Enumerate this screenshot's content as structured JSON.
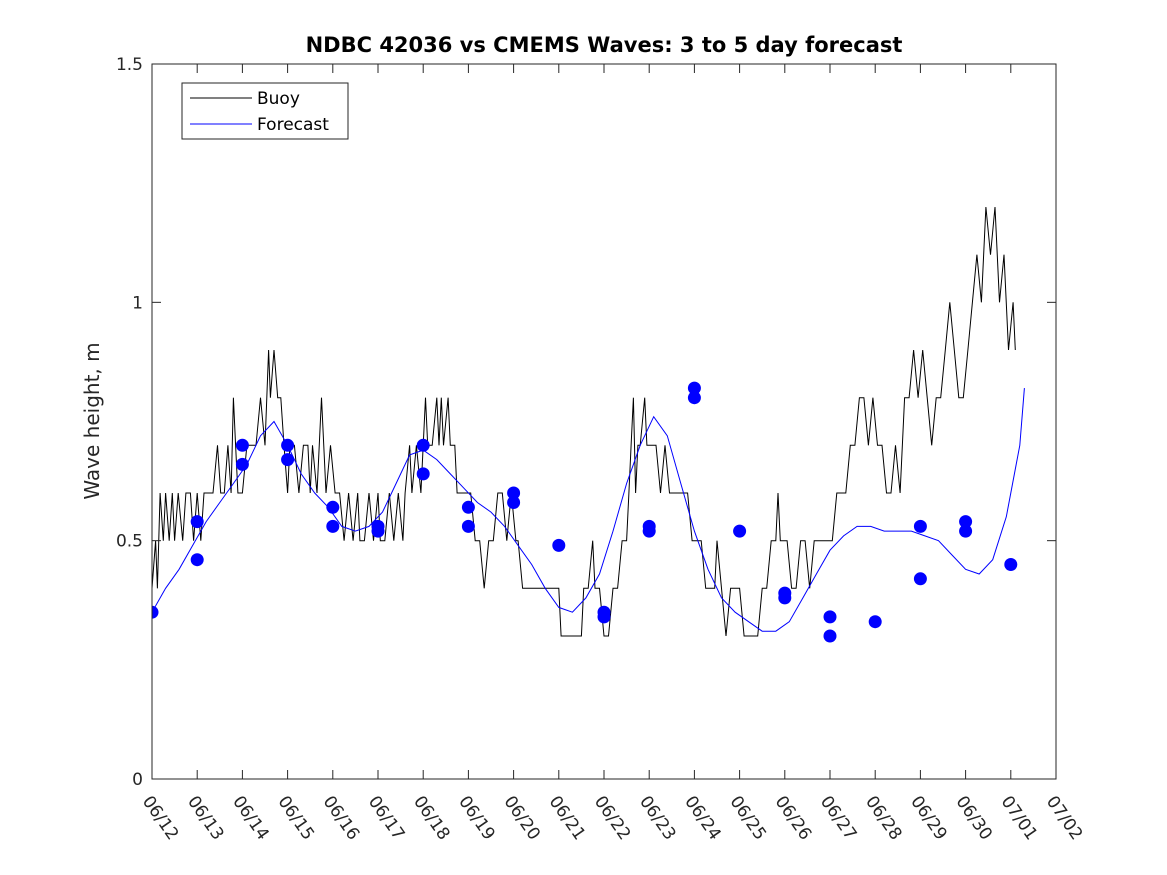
{
  "chart_data": {
    "type": "line",
    "title": "NDBC 42036 vs CMEMS Waves: 3 to 5 day forecast",
    "ylabel": "Wave height, m",
    "xlabel": "",
    "ylim": [
      0,
      1.5
    ],
    "xlim": [
      "06/12",
      "07/02"
    ],
    "x_ticks": [
      "06/12",
      "06/13",
      "06/14",
      "06/15",
      "06/16",
      "06/17",
      "06/18",
      "06/19",
      "06/20",
      "06/21",
      "06/22",
      "06/23",
      "06/24",
      "06/25",
      "06/26",
      "06/27",
      "06/28",
      "06/29",
      "06/30",
      "07/01",
      "07/02"
    ],
    "y_ticks": [
      "0",
      "0.5",
      "1",
      "1.5"
    ],
    "y_tick_values": [
      0,
      0.5,
      1,
      1.5
    ],
    "legend": {
      "placement": "top-left",
      "entries": [
        "Buoy",
        "Forecast"
      ]
    },
    "colors": {
      "buoy": "#000000",
      "forecast": "#0000ff"
    },
    "series": [
      {
        "name": "Buoy",
        "points": [
          [
            0.0,
            0.4
          ],
          [
            0.08,
            0.5
          ],
          [
            0.12,
            0.4
          ],
          [
            0.18,
            0.6
          ],
          [
            0.25,
            0.5
          ],
          [
            0.3,
            0.6
          ],
          [
            0.38,
            0.5
          ],
          [
            0.45,
            0.6
          ],
          [
            0.5,
            0.5
          ],
          [
            0.58,
            0.6
          ],
          [
            0.68,
            0.5
          ],
          [
            0.75,
            0.6
          ],
          [
            0.85,
            0.6
          ],
          [
            0.92,
            0.5
          ],
          [
            1.0,
            0.6
          ],
          [
            1.08,
            0.5
          ],
          [
            1.15,
            0.6
          ],
          [
            1.25,
            0.6
          ],
          [
            1.35,
            0.6
          ],
          [
            1.45,
            0.7
          ],
          [
            1.52,
            0.6
          ],
          [
            1.6,
            0.6
          ],
          [
            1.68,
            0.7
          ],
          [
            1.75,
            0.6
          ],
          [
            1.8,
            0.8
          ],
          [
            1.85,
            0.7
          ],
          [
            1.9,
            0.6
          ],
          [
            2.0,
            0.6
          ],
          [
            2.1,
            0.7
          ],
          [
            2.2,
            0.7
          ],
          [
            2.3,
            0.7
          ],
          [
            2.4,
            0.8
          ],
          [
            2.5,
            0.7
          ],
          [
            2.58,
            0.9
          ],
          [
            2.62,
            0.8
          ],
          [
            2.7,
            0.9
          ],
          [
            2.78,
            0.8
          ],
          [
            2.85,
            0.8
          ],
          [
            2.92,
            0.7
          ],
          [
            3.0,
            0.6
          ],
          [
            3.05,
            0.7
          ],
          [
            3.15,
            0.7
          ],
          [
            3.25,
            0.6
          ],
          [
            3.35,
            0.7
          ],
          [
            3.45,
            0.7
          ],
          [
            3.5,
            0.6
          ],
          [
            3.55,
            0.7
          ],
          [
            3.65,
            0.6
          ],
          [
            3.75,
            0.8
          ],
          [
            3.85,
            0.6
          ],
          [
            3.95,
            0.7
          ],
          [
            4.05,
            0.6
          ],
          [
            4.15,
            0.6
          ],
          [
            4.25,
            0.5
          ],
          [
            4.35,
            0.6
          ],
          [
            4.45,
            0.5
          ],
          [
            4.55,
            0.6
          ],
          [
            4.6,
            0.5
          ],
          [
            4.7,
            0.5
          ],
          [
            4.8,
            0.6
          ],
          [
            4.9,
            0.5
          ],
          [
            5.0,
            0.6
          ],
          [
            5.05,
            0.5
          ],
          [
            5.15,
            0.5
          ],
          [
            5.25,
            0.6
          ],
          [
            5.35,
            0.5
          ],
          [
            5.45,
            0.6
          ],
          [
            5.55,
            0.5
          ],
          [
            5.6,
            0.6
          ],
          [
            5.7,
            0.7
          ],
          [
            5.75,
            0.6
          ],
          [
            5.85,
            0.7
          ],
          [
            5.95,
            0.6
          ],
          [
            6.0,
            0.7
          ],
          [
            6.05,
            0.8
          ],
          [
            6.1,
            0.7
          ],
          [
            6.2,
            0.7
          ],
          [
            6.3,
            0.8
          ],
          [
            6.35,
            0.7
          ],
          [
            6.4,
            0.8
          ],
          [
            6.45,
            0.7
          ],
          [
            6.55,
            0.8
          ],
          [
            6.6,
            0.7
          ],
          [
            6.7,
            0.7
          ],
          [
            6.75,
            0.6
          ],
          [
            6.85,
            0.6
          ],
          [
            6.95,
            0.6
          ],
          [
            7.05,
            0.6
          ],
          [
            7.15,
            0.5
          ],
          [
            7.25,
            0.5
          ],
          [
            7.35,
            0.4
          ],
          [
            7.45,
            0.5
          ],
          [
            7.55,
            0.5
          ],
          [
            7.65,
            0.6
          ],
          [
            7.75,
            0.6
          ],
          [
            7.85,
            0.5
          ],
          [
            7.95,
            0.6
          ],
          [
            8.05,
            0.5
          ],
          [
            8.1,
            0.5
          ],
          [
            8.2,
            0.4
          ],
          [
            8.3,
            0.4
          ],
          [
            8.4,
            0.4
          ],
          [
            8.5,
            0.4
          ],
          [
            8.6,
            0.4
          ],
          [
            8.7,
            0.4
          ],
          [
            8.8,
            0.4
          ],
          [
            8.9,
            0.4
          ],
          [
            9.0,
            0.4
          ],
          [
            9.05,
            0.3
          ],
          [
            9.2,
            0.3
          ],
          [
            9.3,
            0.3
          ],
          [
            9.4,
            0.3
          ],
          [
            9.5,
            0.3
          ],
          [
            9.55,
            0.4
          ],
          [
            9.65,
            0.4
          ],
          [
            9.75,
            0.5
          ],
          [
            9.8,
            0.4
          ],
          [
            9.85,
            0.4
          ],
          [
            9.9,
            0.4
          ],
          [
            10.0,
            0.3
          ],
          [
            10.1,
            0.3
          ],
          [
            10.2,
            0.4
          ],
          [
            10.3,
            0.4
          ],
          [
            10.4,
            0.5
          ],
          [
            10.5,
            0.5
          ],
          [
            10.55,
            0.6
          ],
          [
            10.6,
            0.7
          ],
          [
            10.65,
            0.8
          ],
          [
            10.7,
            0.6
          ],
          [
            10.75,
            0.7
          ],
          [
            10.8,
            0.7
          ],
          [
            10.9,
            0.8
          ],
          [
            10.95,
            0.7
          ],
          [
            11.05,
            0.7
          ],
          [
            11.15,
            0.7
          ],
          [
            11.25,
            0.6
          ],
          [
            11.35,
            0.7
          ],
          [
            11.45,
            0.6
          ],
          [
            11.55,
            0.6
          ],
          [
            11.65,
            0.6
          ],
          [
            11.75,
            0.6
          ],
          [
            11.85,
            0.6
          ],
          [
            11.95,
            0.5
          ],
          [
            12.05,
            0.5
          ],
          [
            12.15,
            0.5
          ],
          [
            12.25,
            0.4
          ],
          [
            12.35,
            0.4
          ],
          [
            12.45,
            0.4
          ],
          [
            12.5,
            0.5
          ],
          [
            12.6,
            0.4
          ],
          [
            12.7,
            0.3
          ],
          [
            12.8,
            0.4
          ],
          [
            12.9,
            0.4
          ],
          [
            13.0,
            0.4
          ],
          [
            13.1,
            0.3
          ],
          [
            13.2,
            0.3
          ],
          [
            13.3,
            0.3
          ],
          [
            13.4,
            0.3
          ],
          [
            13.5,
            0.4
          ],
          [
            13.6,
            0.4
          ],
          [
            13.7,
            0.5
          ],
          [
            13.8,
            0.5
          ],
          [
            13.85,
            0.6
          ],
          [
            13.9,
            0.5
          ],
          [
            13.95,
            0.5
          ],
          [
            14.05,
            0.5
          ],
          [
            14.15,
            0.4
          ],
          [
            14.25,
            0.4
          ],
          [
            14.35,
            0.5
          ],
          [
            14.45,
            0.5
          ],
          [
            14.55,
            0.4
          ],
          [
            14.65,
            0.5
          ],
          [
            14.75,
            0.5
          ],
          [
            14.85,
            0.5
          ],
          [
            14.95,
            0.5
          ],
          [
            15.05,
            0.5
          ],
          [
            15.15,
            0.6
          ],
          [
            15.25,
            0.6
          ],
          [
            15.35,
            0.6
          ],
          [
            15.45,
            0.7
          ],
          [
            15.55,
            0.7
          ],
          [
            15.65,
            0.8
          ],
          [
            15.75,
            0.8
          ],
          [
            15.85,
            0.7
          ],
          [
            15.95,
            0.8
          ],
          [
            16.05,
            0.7
          ],
          [
            16.15,
            0.7
          ],
          [
            16.25,
            0.6
          ],
          [
            16.35,
            0.6
          ],
          [
            16.45,
            0.7
          ],
          [
            16.55,
            0.6
          ],
          [
            16.65,
            0.8
          ],
          [
            16.75,
            0.8
          ],
          [
            16.85,
            0.9
          ],
          [
            16.95,
            0.8
          ],
          [
            17.05,
            0.9
          ],
          [
            17.15,
            0.8
          ],
          [
            17.25,
            0.7
          ],
          [
            17.35,
            0.8
          ],
          [
            17.45,
            0.8
          ],
          [
            17.55,
            0.9
          ],
          [
            17.65,
            1.0
          ],
          [
            17.75,
            0.9
          ],
          [
            17.85,
            0.8
          ],
          [
            17.95,
            0.8
          ],
          [
            18.05,
            0.9
          ],
          [
            18.15,
            1.0
          ],
          [
            18.25,
            1.1
          ],
          [
            18.35,
            1.0
          ],
          [
            18.45,
            1.2
          ],
          [
            18.55,
            1.1
          ],
          [
            18.65,
            1.2
          ],
          [
            18.75,
            1.0
          ],
          [
            18.85,
            1.1
          ],
          [
            18.95,
            0.9
          ],
          [
            19.05,
            1.0
          ],
          [
            19.1,
            0.9
          ]
        ]
      },
      {
        "name": "Forecast",
        "points": [
          [
            0.0,
            0.35
          ],
          [
            0.3,
            0.4
          ],
          [
            0.6,
            0.44
          ],
          [
            0.9,
            0.49
          ],
          [
            1.2,
            0.54
          ],
          [
            1.5,
            0.58
          ],
          [
            1.8,
            0.62
          ],
          [
            2.1,
            0.66
          ],
          [
            2.4,
            0.72
          ],
          [
            2.7,
            0.75
          ],
          [
            3.0,
            0.7
          ],
          [
            3.3,
            0.64
          ],
          [
            3.6,
            0.6
          ],
          [
            3.9,
            0.57
          ],
          [
            4.2,
            0.53
          ],
          [
            4.5,
            0.52
          ],
          [
            4.8,
            0.53
          ],
          [
            5.1,
            0.56
          ],
          [
            5.4,
            0.62
          ],
          [
            5.7,
            0.68
          ],
          [
            6.0,
            0.69
          ],
          [
            6.3,
            0.67
          ],
          [
            6.6,
            0.64
          ],
          [
            6.9,
            0.61
          ],
          [
            7.2,
            0.58
          ],
          [
            7.5,
            0.56
          ],
          [
            7.8,
            0.53
          ],
          [
            8.1,
            0.49
          ],
          [
            8.4,
            0.45
          ],
          [
            8.7,
            0.4
          ],
          [
            9.0,
            0.36
          ],
          [
            9.3,
            0.35
          ],
          [
            9.6,
            0.38
          ],
          [
            9.9,
            0.43
          ],
          [
            10.2,
            0.52
          ],
          [
            10.5,
            0.62
          ],
          [
            10.8,
            0.7
          ],
          [
            11.1,
            0.76
          ],
          [
            11.4,
            0.72
          ],
          [
            11.7,
            0.62
          ],
          [
            12.0,
            0.52
          ],
          [
            12.3,
            0.44
          ],
          [
            12.6,
            0.38
          ],
          [
            12.9,
            0.35
          ],
          [
            13.2,
            0.33
          ],
          [
            13.5,
            0.31
          ],
          [
            13.8,
            0.31
          ],
          [
            14.1,
            0.33
          ],
          [
            14.4,
            0.38
          ],
          [
            14.7,
            0.43
          ],
          [
            15.0,
            0.48
          ],
          [
            15.3,
            0.51
          ],
          [
            15.6,
            0.53
          ],
          [
            15.9,
            0.53
          ],
          [
            16.2,
            0.52
          ],
          [
            16.5,
            0.52
          ],
          [
            16.8,
            0.52
          ],
          [
            17.1,
            0.51
          ],
          [
            17.4,
            0.5
          ],
          [
            17.7,
            0.47
          ],
          [
            18.0,
            0.44
          ],
          [
            18.3,
            0.43
          ],
          [
            18.6,
            0.46
          ],
          [
            18.9,
            0.55
          ],
          [
            19.2,
            0.7
          ],
          [
            19.3,
            0.82
          ]
        ]
      }
    ],
    "forecast_start_markers": [
      [
        0.0,
        0.35
      ],
      [
        1.0,
        0.54
      ],
      [
        1.0,
        0.46
      ],
      [
        2.0,
        0.7
      ],
      [
        2.0,
        0.66
      ],
      [
        3.0,
        0.7
      ],
      [
        3.0,
        0.67
      ],
      [
        4.0,
        0.57
      ],
      [
        4.0,
        0.53
      ],
      [
        5.0,
        0.53
      ],
      [
        5.0,
        0.52
      ],
      [
        6.0,
        0.7
      ],
      [
        6.0,
        0.64
      ],
      [
        7.0,
        0.57
      ],
      [
        7.0,
        0.53
      ],
      [
        8.0,
        0.6
      ],
      [
        8.0,
        0.58
      ],
      [
        9.0,
        0.49
      ],
      [
        10.0,
        0.35
      ],
      [
        10.0,
        0.34
      ],
      [
        11.0,
        0.53
      ],
      [
        11.0,
        0.52
      ],
      [
        12.0,
        0.82
      ],
      [
        12.0,
        0.8
      ],
      [
        13.0,
        0.52
      ],
      [
        14.0,
        0.39
      ],
      [
        14.0,
        0.38
      ],
      [
        15.0,
        0.34
      ],
      [
        15.0,
        0.3
      ],
      [
        16.0,
        0.33
      ],
      [
        17.0,
        0.53
      ],
      [
        17.0,
        0.42
      ],
      [
        18.0,
        0.54
      ],
      [
        18.0,
        0.52
      ],
      [
        19.0,
        0.45
      ]
    ]
  }
}
